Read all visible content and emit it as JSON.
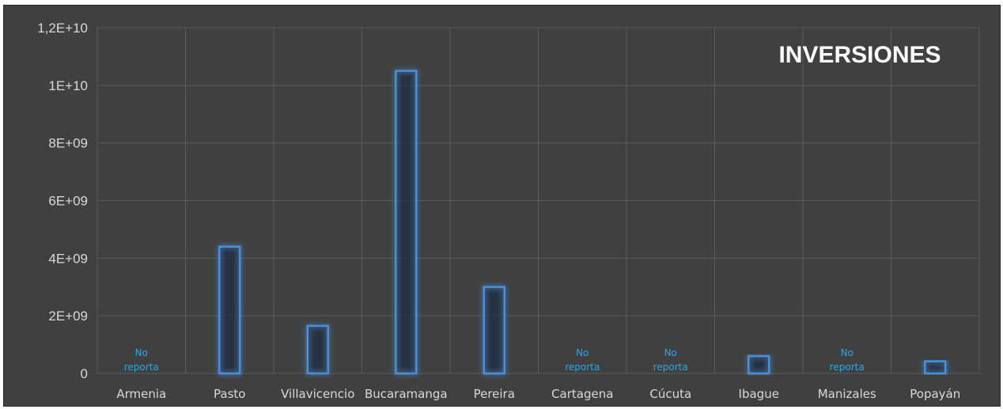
{
  "chart_data": {
    "type": "bar",
    "title": "INVERSIONES",
    "categories": [
      "Armenia",
      "Pasto",
      "Villavicencio",
      "Bucaramanga",
      "Pereira",
      "Cartagena",
      "Cúcuta",
      "Ibague",
      "Manizales",
      "Popayán"
    ],
    "values": [
      null,
      4400000000,
      1650000000,
      10500000000,
      3000000000,
      null,
      null,
      600000000,
      null,
      420000000
    ],
    "annotations": [
      {
        "category": "Armenia",
        "text": [
          "No",
          "reporta"
        ]
      },
      {
        "category": "Cartagena",
        "text": [
          "No",
          "reporta"
        ]
      },
      {
        "category": "Cúcuta",
        "text": [
          "No",
          "reporta"
        ]
      },
      {
        "category": "Manizales",
        "text": [
          "No",
          "reporta"
        ]
      }
    ],
    "ylim": [
      0,
      12000000000
    ],
    "yticks": [
      0,
      2000000000,
      4000000000,
      6000000000,
      8000000000,
      10000000000,
      12000000000
    ],
    "ytick_labels": [
      "0",
      "2E+09",
      "4E+09",
      "6E+09",
      "8E+09",
      "1E+10",
      "1,2E+10"
    ],
    "grid": true,
    "legend": "none"
  },
  "colors": {
    "background": "#404040",
    "grid": "#5a5a5a",
    "bar_stroke": "#4a90d9",
    "bar_glow": "#1f6fc4",
    "annotation": "#27a7e8",
    "text": "#d9d9d9",
    "title": "#ffffff"
  }
}
